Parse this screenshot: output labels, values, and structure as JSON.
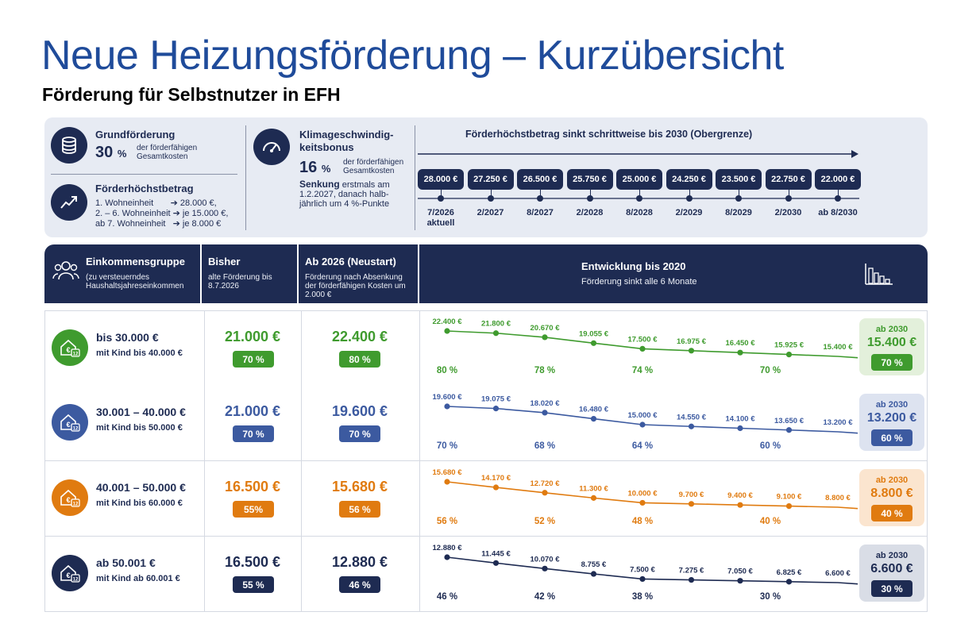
{
  "header": {
    "title": "Neue Heizungsförderung – Kurzübersicht",
    "subtitle": "Förderung für Selbstnutzer in EFH"
  },
  "top_panel": {
    "grund": {
      "label": "Grundförderung",
      "pct": "30",
      "pct_sign": "%",
      "note": "der förderfähigen Gesamtkosten",
      "icon": "coins-icon"
    },
    "hoechst": {
      "label": "Förderhöchstbetrag",
      "lines": "1. Wohneinheit       ➔ 28.000 €,\n2. – 6. Wohneinheit ➔ je 15.000 €,\nab 7. Wohneinheit   ➔ je 8.000 €",
      "icon": "trend-up-icon"
    },
    "klima": {
      "label": "Klimageschwindig-\nkeitsbonus",
      "pct": "16",
      "pct_sign": "%",
      "note": "der förderfähigen Gesamtkosten",
      "senk_bold": "Senkung",
      "senk_text": " erstmals am 1.2.2027, danach halb-jährlich um 4 %-Punkte",
      "icon": "speedometer-icon"
    },
    "timeline": {
      "title": "Förderhöchstbetrag sinkt schrittweise bis 2030 (Obergrenze)",
      "steps": [
        {
          "amount": "28.000 €",
          "date": "7/2026",
          "date2": "aktuell"
        },
        {
          "amount": "27.250 €",
          "date": "2/2027"
        },
        {
          "amount": "26.500 €",
          "date": "8/2027"
        },
        {
          "amount": "25.750 €",
          "date": "2/2028"
        },
        {
          "amount": "25.000 €",
          "date": "8/2028"
        },
        {
          "amount": "24.250 €",
          "date": "2/2029"
        },
        {
          "amount": "23.500 €",
          "date": "8/2029"
        },
        {
          "amount": "22.750 €",
          "date": "2/2030"
        },
        {
          "amount": "22.000 €",
          "date": "ab 8/2030"
        }
      ]
    }
  },
  "table_header": {
    "col1_title": "Einkommensgruppe",
    "col1_sub": "(zu versteuerndes Haushaltsjahreseinkommen",
    "col2_title": "Bisher",
    "col2_sub": "alte Förderung bis 8.7.2026",
    "col3_title": "Ab 2026 (Neustart)",
    "col3_sub": "Förderung nach Absenkung der förderfähigen Kosten um 2.000 €",
    "col4_title": "Entwicklung bis 2020",
    "col4_sub": "Förderung sinkt alle 6 Monate",
    "icon": "bar-chart-icon",
    "group_icon": "people-icon"
  },
  "rows": [
    {
      "group": "bis 30.000 €",
      "kid": "mit Kind bis 40.000 €",
      "old_amount": "21.000 €",
      "old_pct": "70 %",
      "new_amount": "22.400 €",
      "new_pct": "80 %",
      "end_label": "ab 2030",
      "end_amount": "15.400 €",
      "end_pct": "70 %",
      "color": "#3f9b2e",
      "box_bg": "#e3f0db"
    },
    {
      "group": "30.001 – 40.000 €",
      "kid": "mit Kind bis 50.000 €",
      "old_amount": "21.000 €",
      "old_pct": "70 %",
      "new_amount": "19.600 €",
      "new_pct": "70 %",
      "end_label": "ab 2030",
      "end_amount": "13.200 €",
      "end_pct": "60 %",
      "color": "#3c5aa0",
      "box_bg": "#dde3f0"
    },
    {
      "group": "40.001 – 50.000 €",
      "kid": "mit Kind bis 60.000 €",
      "old_amount": "16.500 €",
      "old_pct": "55%",
      "new_amount": "15.680 €",
      "new_pct": "56 %",
      "end_label": "ab 2030",
      "end_amount": "8.800 €",
      "end_pct": "40 %",
      "color": "#e07b10",
      "box_bg": "#fbe5cf"
    },
    {
      "group": "ab 50.001 €",
      "kid": "mit Kind ab 60.001 €",
      "old_amount": "16.500 €",
      "old_pct": "55 %",
      "new_amount": "12.880 €",
      "new_pct": "46 %",
      "end_label": "ab 2030",
      "end_amount": "6.600 €",
      "end_pct": "30 %",
      "color": "#1e2b52",
      "box_bg": "#d9dde6"
    }
  ],
  "chart_data": [
    {
      "type": "line",
      "series": [
        {
          "values": [
            22400,
            21800,
            20670,
            19055,
            17500,
            16975,
            16450,
            15925,
            15400
          ],
          "labels": [
            "22.400 €",
            "21.800 €",
            "20.670 €",
            "19.055 €",
            "17.500 €",
            "16.975 €",
            "16.450 €",
            "15.925 €",
            "15.400 €"
          ]
        }
      ],
      "percentages": [
        "80 %",
        "78 %",
        "74 %",
        "70 %"
      ],
      "color": "#3f9b2e"
    },
    {
      "type": "line",
      "series": [
        {
          "values": [
            19600,
            19075,
            18020,
            16480,
            15000,
            14550,
            14100,
            13650,
            13200
          ],
          "labels": [
            "19.600 €",
            "19.075 €",
            "18.020 €",
            "16.480 €",
            "15.000 €",
            "14.550 €",
            "14.100 €",
            "13.650 €",
            "13.200 €"
          ]
        }
      ],
      "percentages": [
        "70 %",
        "68 %",
        "64 %",
        "60 %"
      ],
      "color": "#3c5aa0"
    },
    {
      "type": "line",
      "series": [
        {
          "values": [
            15680,
            14170,
            12720,
            11300,
            10000,
            9700,
            9400,
            9100,
            8800
          ],
          "labels": [
            "15.680 €",
            "14.170 €",
            "12.720 €",
            "11.300 €",
            "10.000 €",
            "9.700 €",
            "9.400 €",
            "9.100 €",
            "8.800 €"
          ]
        }
      ],
      "percentages": [
        "56 %",
        "52 %",
        "48 %",
        "40 %"
      ],
      "color": "#e07b10"
    },
    {
      "type": "line",
      "series": [
        {
          "values": [
            12880,
            11445,
            10070,
            8755,
            7500,
            7275,
            7050,
            6825,
            6600
          ],
          "labels": [
            "12.880 €",
            "11.445 €",
            "10.070 €",
            "8.755 €",
            "7.500 €",
            "7.275 €",
            "7.050 €",
            "6.825 €",
            "6.600 €"
          ]
        }
      ],
      "percentages": [
        "46 %",
        "42 %",
        "38 %",
        "30 %"
      ],
      "color": "#1e2b52"
    }
  ]
}
